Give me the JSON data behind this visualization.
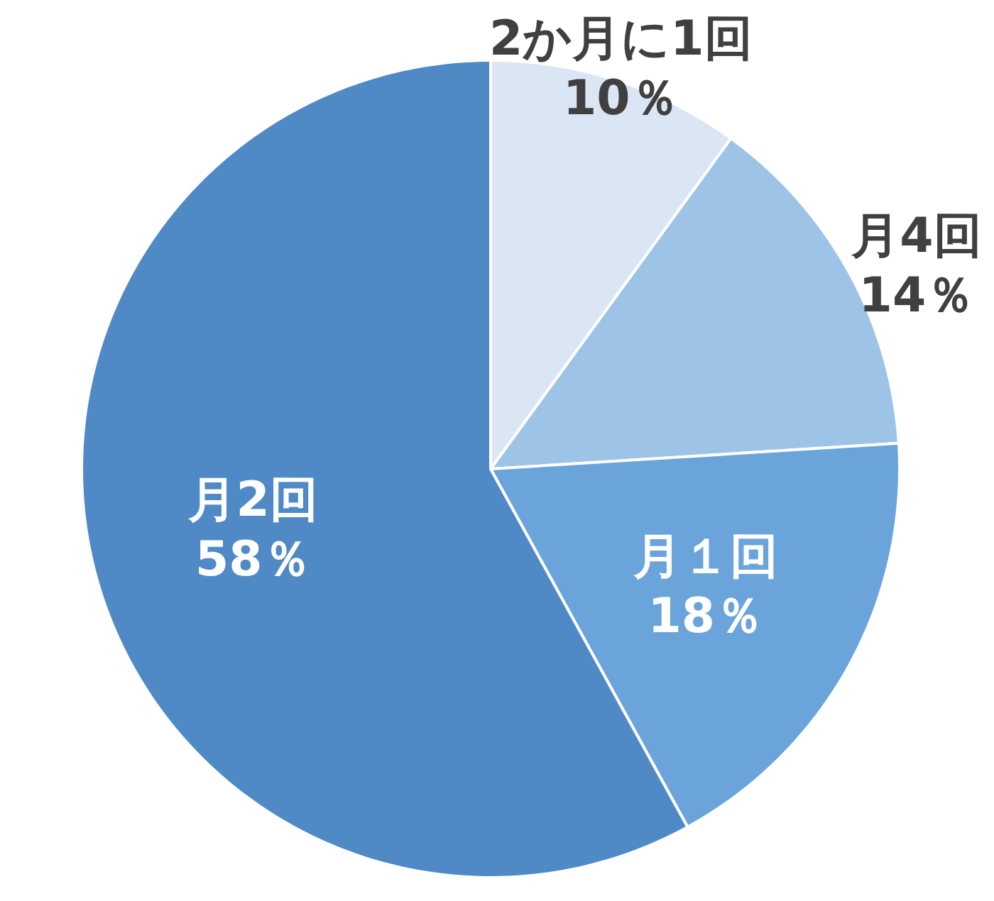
{
  "chart_data": {
    "type": "pie",
    "categories": [
      "2か月に1回",
      "月4回",
      "月１回",
      "月2回"
    ],
    "values": [
      10,
      14,
      18,
      58
    ],
    "value_labels": [
      "10％",
      "14％",
      "18％",
      "58％"
    ],
    "colors": [
      "#dae6f4",
      "#9dc3e6",
      "#6aa4da",
      "#4f8ac6"
    ]
  }
}
